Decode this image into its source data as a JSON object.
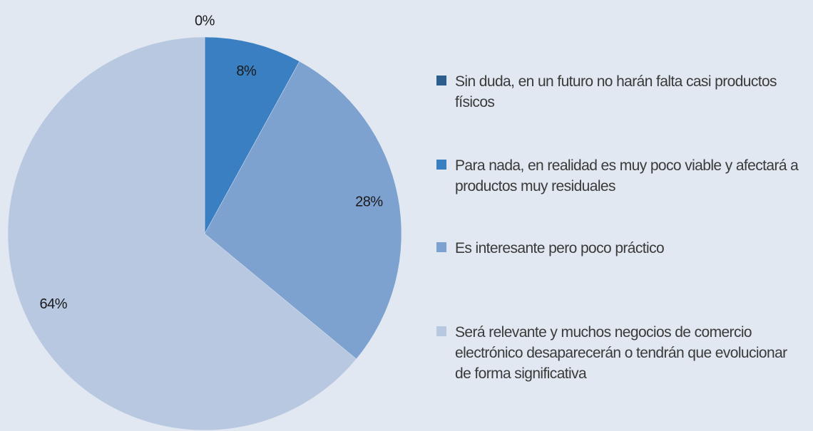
{
  "chart_data": {
    "type": "pie",
    "categories": [
      "Sin duda, en un futuro no harán falta casi productos físicos",
      "Para nada, en realidad es muy poco viable y afectará a productos muy residuales",
      "Es interesante pero poco práctico",
      "Será relevante y muchos negocios de comercio electrónico desaparecerán o tendrán que evolucionar de forma significativa"
    ],
    "values": [
      0,
      8,
      28,
      64
    ],
    "value_labels": [
      "0%",
      "8%",
      "28%",
      "64%"
    ],
    "colors": [
      "#2c5d8c",
      "#3a7fc2",
      "#7ea2d0",
      "#b7c8e0"
    ],
    "legend": "right"
  }
}
